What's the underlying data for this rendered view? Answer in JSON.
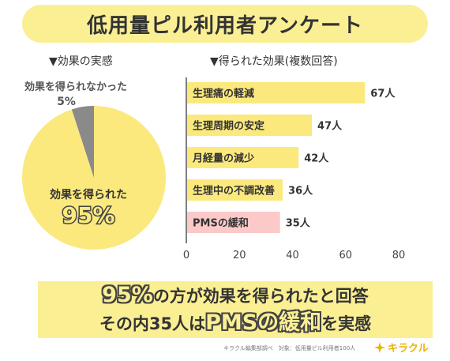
{
  "title": "低用量ピル利用者アンケート",
  "chart_data": [
    {
      "type": "pie",
      "title": "▼効果の実感",
      "slices": [
        {
          "label": "効果を得られた",
          "value": 95,
          "value_label": "95%",
          "color": "#fbe97e"
        },
        {
          "label": "効果を得られなかった",
          "value": 5,
          "value_label": "5%",
          "color": "#8a8a8a"
        }
      ]
    },
    {
      "type": "bar",
      "orientation": "horizontal",
      "title": "▼得られた効果(複数回答)",
      "categories": [
        "生理痛の軽減",
        "生理周期の安定",
        "月経量の減少",
        "生理中の不調改善",
        "PMSの緩和"
      ],
      "values": [
        67,
        47,
        42,
        36,
        35
      ],
      "value_labels": [
        "67人",
        "47人",
        "42人",
        "36人",
        "35人"
      ],
      "colors": [
        "#fbe97e",
        "#fbe97e",
        "#fbe97e",
        "#fbe97e",
        "#fcc9c9"
      ],
      "xlim": [
        0,
        80
      ],
      "xticks": [
        "0",
        "20",
        "40",
        "60",
        "80"
      ],
      "grid": false
    }
  ],
  "summary": {
    "line1_highlight": "95%",
    "line1_rest": "の方が効果を得られたと回答",
    "line2_prefix": "その内35人は",
    "line2_highlight": "PMSの緩和",
    "line2_suffix": "を実感"
  },
  "footer": {
    "note": "キラクル編集部調べ　対象：低用量ピル利用者100人",
    "logo_text": "キラクル",
    "logo_icon": "sparkle-icon",
    "logo_color": "#e8b400"
  }
}
